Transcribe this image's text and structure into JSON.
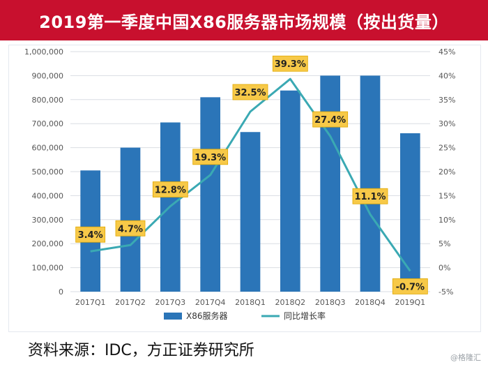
{
  "title": "2019第一季度中国X86服务器市场规模（按出货量）",
  "source": "资料来源：IDC，方正证券研究所",
  "watermark": "@格隆汇",
  "colors": {
    "title_background": "#c8102e",
    "bar": "#2b75b8",
    "line": "#3aa9b3",
    "label_background": "#f7c948",
    "axis_text": "#555555",
    "grid": "#d9dde3"
  },
  "chart_data": {
    "type": "bar",
    "categories": [
      "2017Q1",
      "2017Q2",
      "2017Q3",
      "2017Q4",
      "2018Q1",
      "2018Q2",
      "2018Q3",
      "2018Q4",
      "2019Q1"
    ],
    "series": [
      {
        "name": "X86服务器",
        "type": "bar",
        "axis": "left",
        "values": [
          505000,
          600000,
          705000,
          810000,
          665000,
          838000,
          900000,
          900000,
          660000
        ]
      },
      {
        "name": "同比增长率",
        "type": "line",
        "axis": "right",
        "values": [
          3.4,
          4.7,
          12.8,
          19.3,
          32.5,
          39.3,
          27.4,
          11.1,
          -0.7
        ],
        "labels": [
          "3.4%",
          "4.7%",
          "12.8%",
          "19.3%",
          "32.5%",
          "39.3%",
          "27.4%",
          "11.1%",
          "-0.7%"
        ]
      }
    ],
    "left_axis": {
      "ylim": [
        0,
        1000000
      ],
      "ticks": [
        0,
        100000,
        200000,
        300000,
        400000,
        500000,
        600000,
        700000,
        800000,
        900000,
        1000000
      ],
      "tick_labels": [
        "0",
        "100,000",
        "200,000",
        "300,000",
        "400,000",
        "500,000",
        "600,000",
        "700,000",
        "800,000",
        "900,000",
        "1,000,000"
      ]
    },
    "right_axis": {
      "ylim": [
        -5,
        45
      ],
      "ticks": [
        -5,
        0,
        5,
        10,
        15,
        20,
        25,
        30,
        35,
        40,
        45
      ],
      "tick_labels": [
        "-5%",
        "0%",
        "5%",
        "10%",
        "15%",
        "20%",
        "25%",
        "30%",
        "35%",
        "40%",
        "45%"
      ]
    },
    "grid": true,
    "legend_position": "bottom"
  }
}
